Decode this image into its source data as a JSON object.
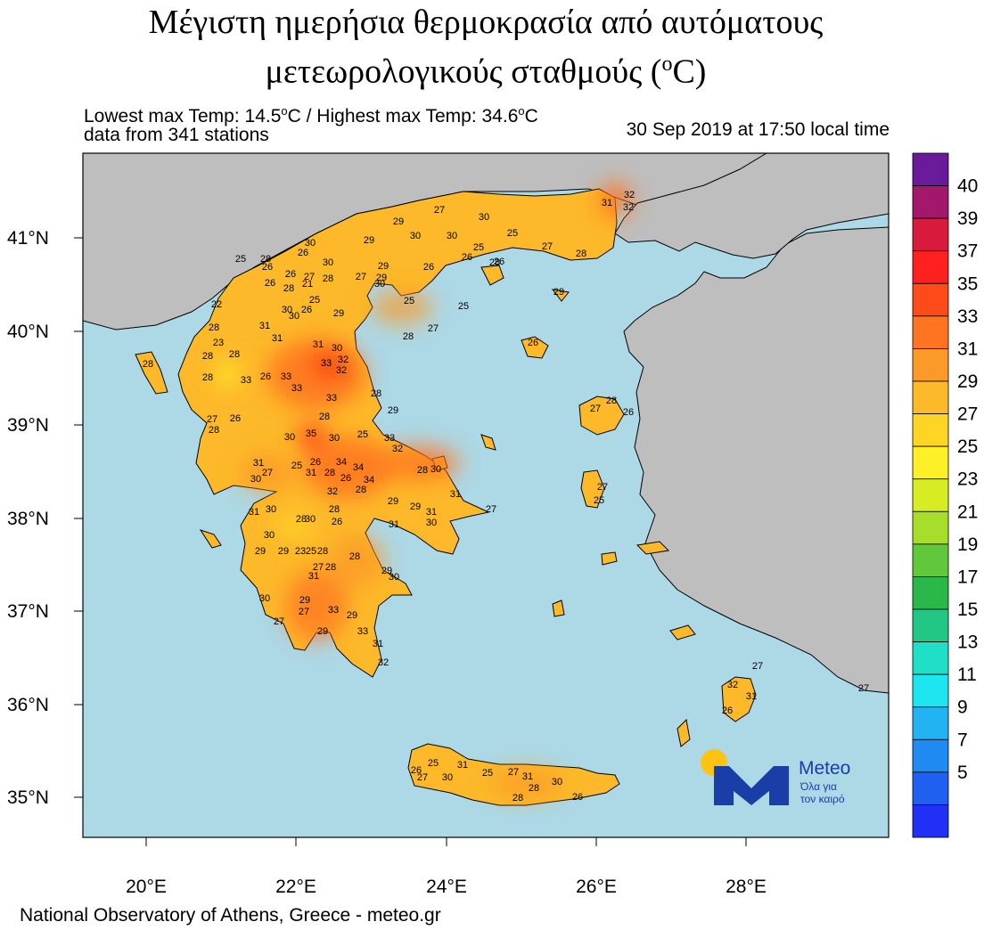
{
  "title": {
    "line1": "Μέγιστη ημερήσια θερμοκρασία από αυτόματους",
    "line2": "μετεωρολογικούς σταθμούς (",
    "line2_sup": "o",
    "line2_end": "C)"
  },
  "info": {
    "minmax_a": "Lowest max Temp: 14.5",
    "minmax_b": "C / Highest max Temp: 34.6",
    "minmax_c": "C",
    "deg_sup": "o",
    "stations": "data from 341 stations",
    "timestamp": "30 Sep 2019 at 17:50 local time"
  },
  "axes": {
    "lat_labels": [
      "41°N",
      "40°N",
      "39°N",
      "38°N",
      "37°N",
      "36°N",
      "35°N"
    ],
    "lon_labels": [
      "20°E",
      "22°E",
      "24°E",
      "26°E",
      "28°E"
    ]
  },
  "legend": {
    "labels": [
      "40",
      "39",
      "37",
      "35",
      "33",
      "31",
      "29",
      "27",
      "25",
      "23",
      "21",
      "19",
      "17",
      "15",
      "13",
      "11",
      "9",
      "7",
      "5"
    ],
    "colors": [
      "#6a1b9a",
      "#a3186b",
      "#d81b3c",
      "#ff2020",
      "#ff4a1a",
      "#ff7420",
      "#fb9a28",
      "#fdb92a",
      "#fed525",
      "#fdf028",
      "#d8ec24",
      "#a7dd2b",
      "#60c83a",
      "#2ab84a",
      "#22c785",
      "#1fe0c6",
      "#1ee6f0",
      "#22b4f2",
      "#1f8af2",
      "#2060f0",
      "#2130f5"
    ]
  },
  "station_values": [
    "32",
    "31",
    "32",
    "27",
    "30",
    "29",
    "30",
    "29",
    "30",
    "25",
    "25",
    "26",
    "26",
    "27",
    "28",
    "25",
    "28",
    "26",
    "30",
    "26",
    "26",
    "30",
    "29",
    "29",
    "27",
    "30",
    "27",
    "28",
    "21",
    "26",
    "28",
    "30",
    "31",
    "26",
    "25",
    "29",
    "25",
    "26",
    "25",
    "22",
    "28",
    "31",
    "30",
    "23",
    "28",
    "28",
    "31",
    "30",
    "32",
    "33",
    "32",
    "33",
    "33",
    "28",
    "26",
    "28",
    "33",
    "33",
    "28",
    "27",
    "29",
    "28",
    "30",
    "27",
    "26",
    "35",
    "30",
    "32",
    "34",
    "26",
    "34",
    "28",
    "30",
    "28",
    "25",
    "31",
    "27",
    "34",
    "31",
    "28",
    "25",
    "26",
    "32",
    "33",
    "31",
    "29",
    "29",
    "31",
    "31",
    "30",
    "27",
    "30",
    "31",
    "28",
    "30",
    "28",
    "26",
    "30",
    "29",
    "29",
    "23",
    "25",
    "28",
    "27",
    "28",
    "31",
    "28",
    "29",
    "30",
    "30",
    "29",
    "27",
    "33",
    "29",
    "33",
    "29",
    "27",
    "31",
    "32",
    "28",
    "28",
    "30",
    "27",
    "28",
    "26",
    "27",
    "25",
    "26",
    "29",
    "28",
    "27",
    "32",
    "31",
    "26",
    "27",
    "25",
    "31",
    "26",
    "30",
    "25",
    "27",
    "31",
    "30",
    "28",
    "28",
    "26",
    "27"
  ],
  "footer": "National Observatory of Athens, Greece - meteo.gr",
  "logo": {
    "name": "Meteo",
    "tagline1": "Όλα για",
    "tagline2": "τον καιρό"
  }
}
